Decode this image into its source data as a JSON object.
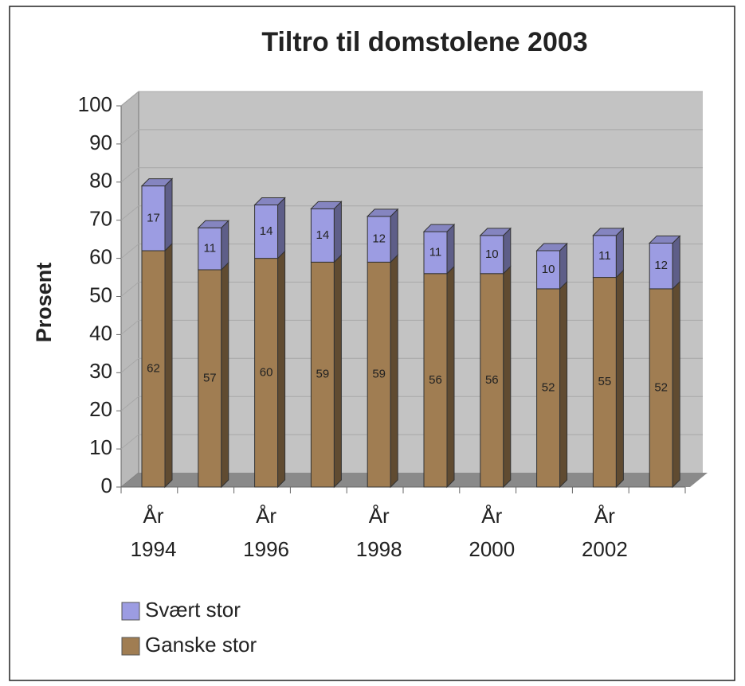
{
  "chart_data": {
    "type": "bar",
    "stacked": true,
    "title": "Tiltro til domstolene 2003",
    "y_label": "Prosent",
    "categories": [
      "År 1994",
      null,
      "År 1996",
      null,
      "År 1998",
      null,
      "År 2000",
      null,
      "År 2002",
      null
    ],
    "series": [
      {
        "name": "Ganske stor",
        "color": "#a07d52",
        "values": [
          62,
          57,
          60,
          59,
          59,
          56,
          56,
          52,
          55,
          52
        ]
      },
      {
        "name": "Svært stor",
        "color": "#9c9ce2",
        "values": [
          17,
          11,
          14,
          14,
          12,
          11,
          10,
          10,
          11,
          12
        ]
      }
    ],
    "ylim": [
      0,
      100
    ],
    "yticks": [
      0,
      10,
      20,
      30,
      40,
      50,
      60,
      70,
      80,
      90,
      100
    ],
    "grid": true,
    "legend": "bottom-left"
  }
}
